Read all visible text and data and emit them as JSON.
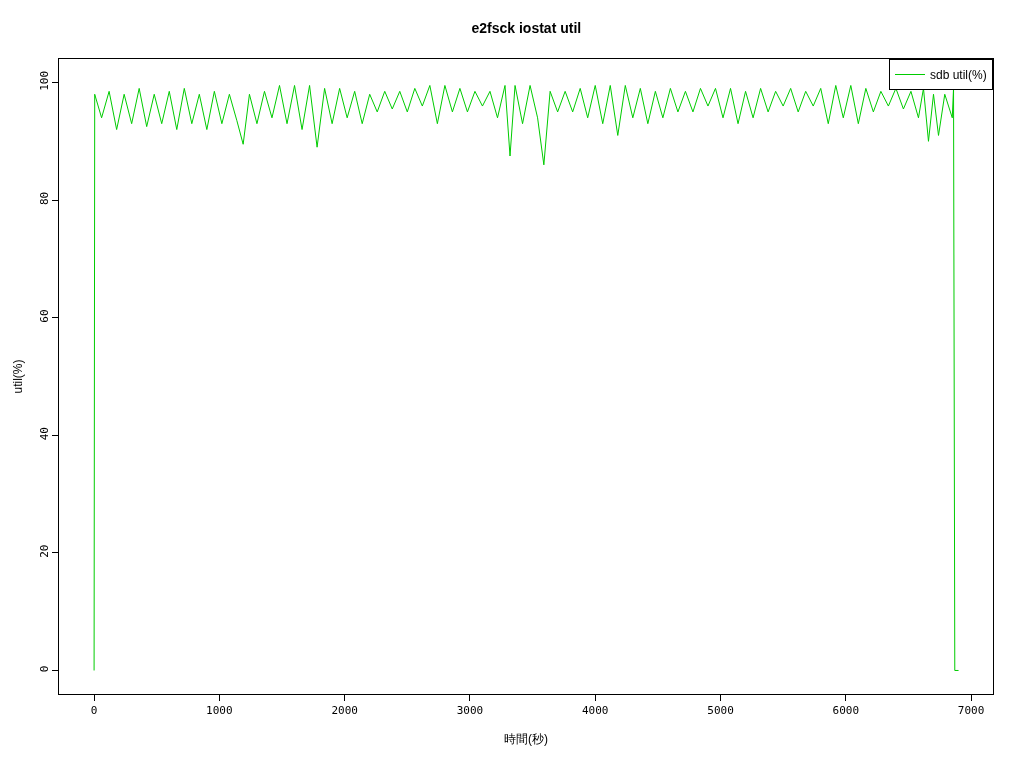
{
  "chart_data": {
    "type": "line",
    "title": "e2fsck iostat util",
    "xlabel": "時間(秒)",
    "ylabel": "util(%)",
    "x": [
      0,
      5,
      60,
      120,
      180,
      240,
      300,
      360,
      420,
      480,
      540,
      600,
      660,
      720,
      780,
      840,
      900,
      960,
      1020,
      1080,
      1140,
      1190,
      1240,
      1300,
      1360,
      1420,
      1480,
      1540,
      1600,
      1660,
      1720,
      1780,
      1840,
      1900,
      1960,
      2020,
      2080,
      2140,
      2200,
      2260,
      2320,
      2380,
      2440,
      2500,
      2560,
      2620,
      2680,
      2740,
      2800,
      2860,
      2920,
      2980,
      3040,
      3100,
      3160,
      3220,
      3280,
      3320,
      3360,
      3420,
      3480,
      3540,
      3590,
      3640,
      3700,
      3760,
      3820,
      3880,
      3940,
      4000,
      4060,
      4120,
      4180,
      4240,
      4300,
      4360,
      4420,
      4480,
      4540,
      4600,
      4660,
      4720,
      4780,
      4840,
      4900,
      4960,
      5020,
      5080,
      5140,
      5200,
      5260,
      5320,
      5380,
      5440,
      5500,
      5560,
      5620,
      5680,
      5740,
      5800,
      5860,
      5920,
      5980,
      6040,
      6100,
      6160,
      6220,
      6280,
      6340,
      6400,
      6460,
      6520,
      6580,
      6620,
      6660,
      6700,
      6740,
      6790,
      6850,
      6860,
      6870,
      6900
    ],
    "series": [
      {
        "name": "sdb util(%)",
        "color": "#00cc00",
        "values": [
          0,
          98,
          94,
          98.5,
          92,
          98,
          93,
          99,
          92.5,
          98,
          93,
          98.5,
          92,
          99,
          93,
          98,
          92,
          98.5,
          93,
          98,
          93.5,
          89.5,
          98,
          93,
          98.5,
          94,
          99.5,
          93,
          99.5,
          92,
          99.5,
          89,
          99,
          93,
          99,
          94,
          98.5,
          93,
          98,
          95,
          98.5,
          95.5,
          98.5,
          95,
          99,
          96,
          99.5,
          93,
          99.5,
          95,
          99,
          95,
          98.5,
          96,
          98.5,
          94,
          99.5,
          87.5,
          99.5,
          93,
          99.5,
          94,
          86,
          98.5,
          95,
          98.5,
          95,
          99,
          94,
          99.5,
          93,
          99.5,
          91,
          99.5,
          94,
          99,
          93,
          98.5,
          94,
          99,
          95,
          98.5,
          95,
          99,
          96,
          99,
          94,
          99,
          93,
          98.5,
          94,
          99,
          95,
          98.5,
          96,
          99,
          95,
          98.5,
          96,
          99,
          93,
          99.5,
          94,
          99.5,
          93,
          99,
          95,
          98.5,
          96,
          99,
          95.5,
          98.5,
          94,
          99,
          90,
          98,
          91,
          98,
          94,
          99,
          0,
          0
        ]
      }
    ],
    "xlim": [
      -280,
      7175
    ],
    "ylim": [
      -4,
      104
    ],
    "xticks": [
      0,
      1000,
      2000,
      3000,
      4000,
      5000,
      6000,
      7000
    ],
    "yticks": [
      0,
      20,
      40,
      60,
      80,
      100
    ],
    "grid": false,
    "legend": "top right",
    "marker": "none",
    "line_style": "solid"
  }
}
